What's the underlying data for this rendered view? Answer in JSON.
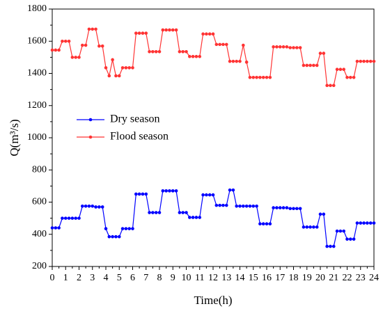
{
  "chart_data": {
    "type": "line",
    "xlabel": "Time(h)",
    "ylabel": "Q(m³/s)",
    "x": [
      0,
      0.25,
      0.5,
      0.75,
      1,
      1.25,
      1.5,
      1.75,
      2,
      2.25,
      2.5,
      2.75,
      3,
      3.25,
      3.5,
      3.75,
      4,
      4.25,
      4.5,
      4.75,
      5,
      5.25,
      5.5,
      5.75,
      6,
      6.25,
      6.5,
      6.75,
      7,
      7.25,
      7.5,
      7.75,
      8,
      8.25,
      8.5,
      8.75,
      9,
      9.25,
      9.5,
      9.75,
      10,
      10.25,
      10.5,
      10.75,
      11,
      11.25,
      11.5,
      11.75,
      12,
      12.25,
      12.5,
      12.75,
      13,
      13.25,
      13.5,
      13.75,
      14,
      14.25,
      14.5,
      14.75,
      15,
      15.25,
      15.5,
      15.75,
      16,
      16.25,
      16.5,
      16.75,
      17,
      17.25,
      17.5,
      17.75,
      18,
      18.25,
      18.5,
      18.75,
      19,
      19.25,
      19.5,
      19.75,
      20,
      20.25,
      20.5,
      20.75,
      21,
      21.25,
      21.5,
      21.75,
      22,
      22.25,
      22.5,
      22.75,
      23,
      23.25,
      23.5,
      23.75,
      24
    ],
    "series": [
      {
        "name": "Dry season",
        "color": "#0000ff",
        "values": [
          440,
          440,
          440,
          500,
          500,
          500,
          500,
          500,
          500,
          575,
          575,
          575,
          575,
          570,
          570,
          570,
          435,
          385,
          385,
          385,
          385,
          435,
          435,
          435,
          435,
          650,
          650,
          650,
          650,
          535,
          535,
          535,
          535,
          670,
          670,
          670,
          670,
          670,
          535,
          535,
          535,
          505,
          505,
          505,
          505,
          645,
          645,
          645,
          645,
          580,
          580,
          580,
          580,
          675,
          675,
          575,
          575,
          575,
          575,
          575,
          575,
          575,
          465,
          465,
          465,
          465,
          565,
          565,
          565,
          565,
          565,
          560,
          560,
          560,
          560,
          445,
          445,
          445,
          445,
          445,
          525,
          525,
          325,
          325,
          325,
          420,
          420,
          420,
          370,
          370,
          370,
          470,
          470,
          470,
          470,
          470,
          470
        ]
      },
      {
        "name": "Flood season",
        "color": "#ff3333",
        "values": [
          1545,
          1545,
          1545,
          1600,
          1600,
          1600,
          1500,
          1500,
          1500,
          1575,
          1575,
          1675,
          1675,
          1675,
          1570,
          1570,
          1435,
          1385,
          1485,
          1385,
          1385,
          1435,
          1435,
          1435,
          1435,
          1650,
          1650,
          1650,
          1650,
          1535,
          1535,
          1535,
          1535,
          1670,
          1670,
          1670,
          1670,
          1670,
          1535,
          1535,
          1535,
          1505,
          1505,
          1505,
          1505,
          1645,
          1645,
          1645,
          1645,
          1580,
          1580,
          1580,
          1580,
          1475,
          1475,
          1475,
          1475,
          1575,
          1470,
          1375,
          1375,
          1375,
          1375,
          1375,
          1375,
          1375,
          1565,
          1565,
          1565,
          1565,
          1565,
          1560,
          1560,
          1560,
          1560,
          1450,
          1450,
          1450,
          1450,
          1450,
          1525,
          1525,
          1325,
          1325,
          1325,
          1425,
          1425,
          1425,
          1375,
          1375,
          1375,
          1475,
          1475,
          1475,
          1475,
          1475,
          1475
        ]
      }
    ],
    "xlim": [
      0,
      24
    ],
    "xticks": [
      0,
      1,
      2,
      3,
      4,
      5,
      6,
      7,
      8,
      9,
      10,
      11,
      12,
      13,
      14,
      15,
      16,
      17,
      18,
      19,
      20,
      21,
      22,
      23,
      24
    ],
    "ylim": [
      200,
      1800
    ],
    "yticks": [
      200,
      400,
      600,
      800,
      1000,
      1200,
      1400,
      1600,
      1800
    ],
    "legend": "upper left"
  }
}
